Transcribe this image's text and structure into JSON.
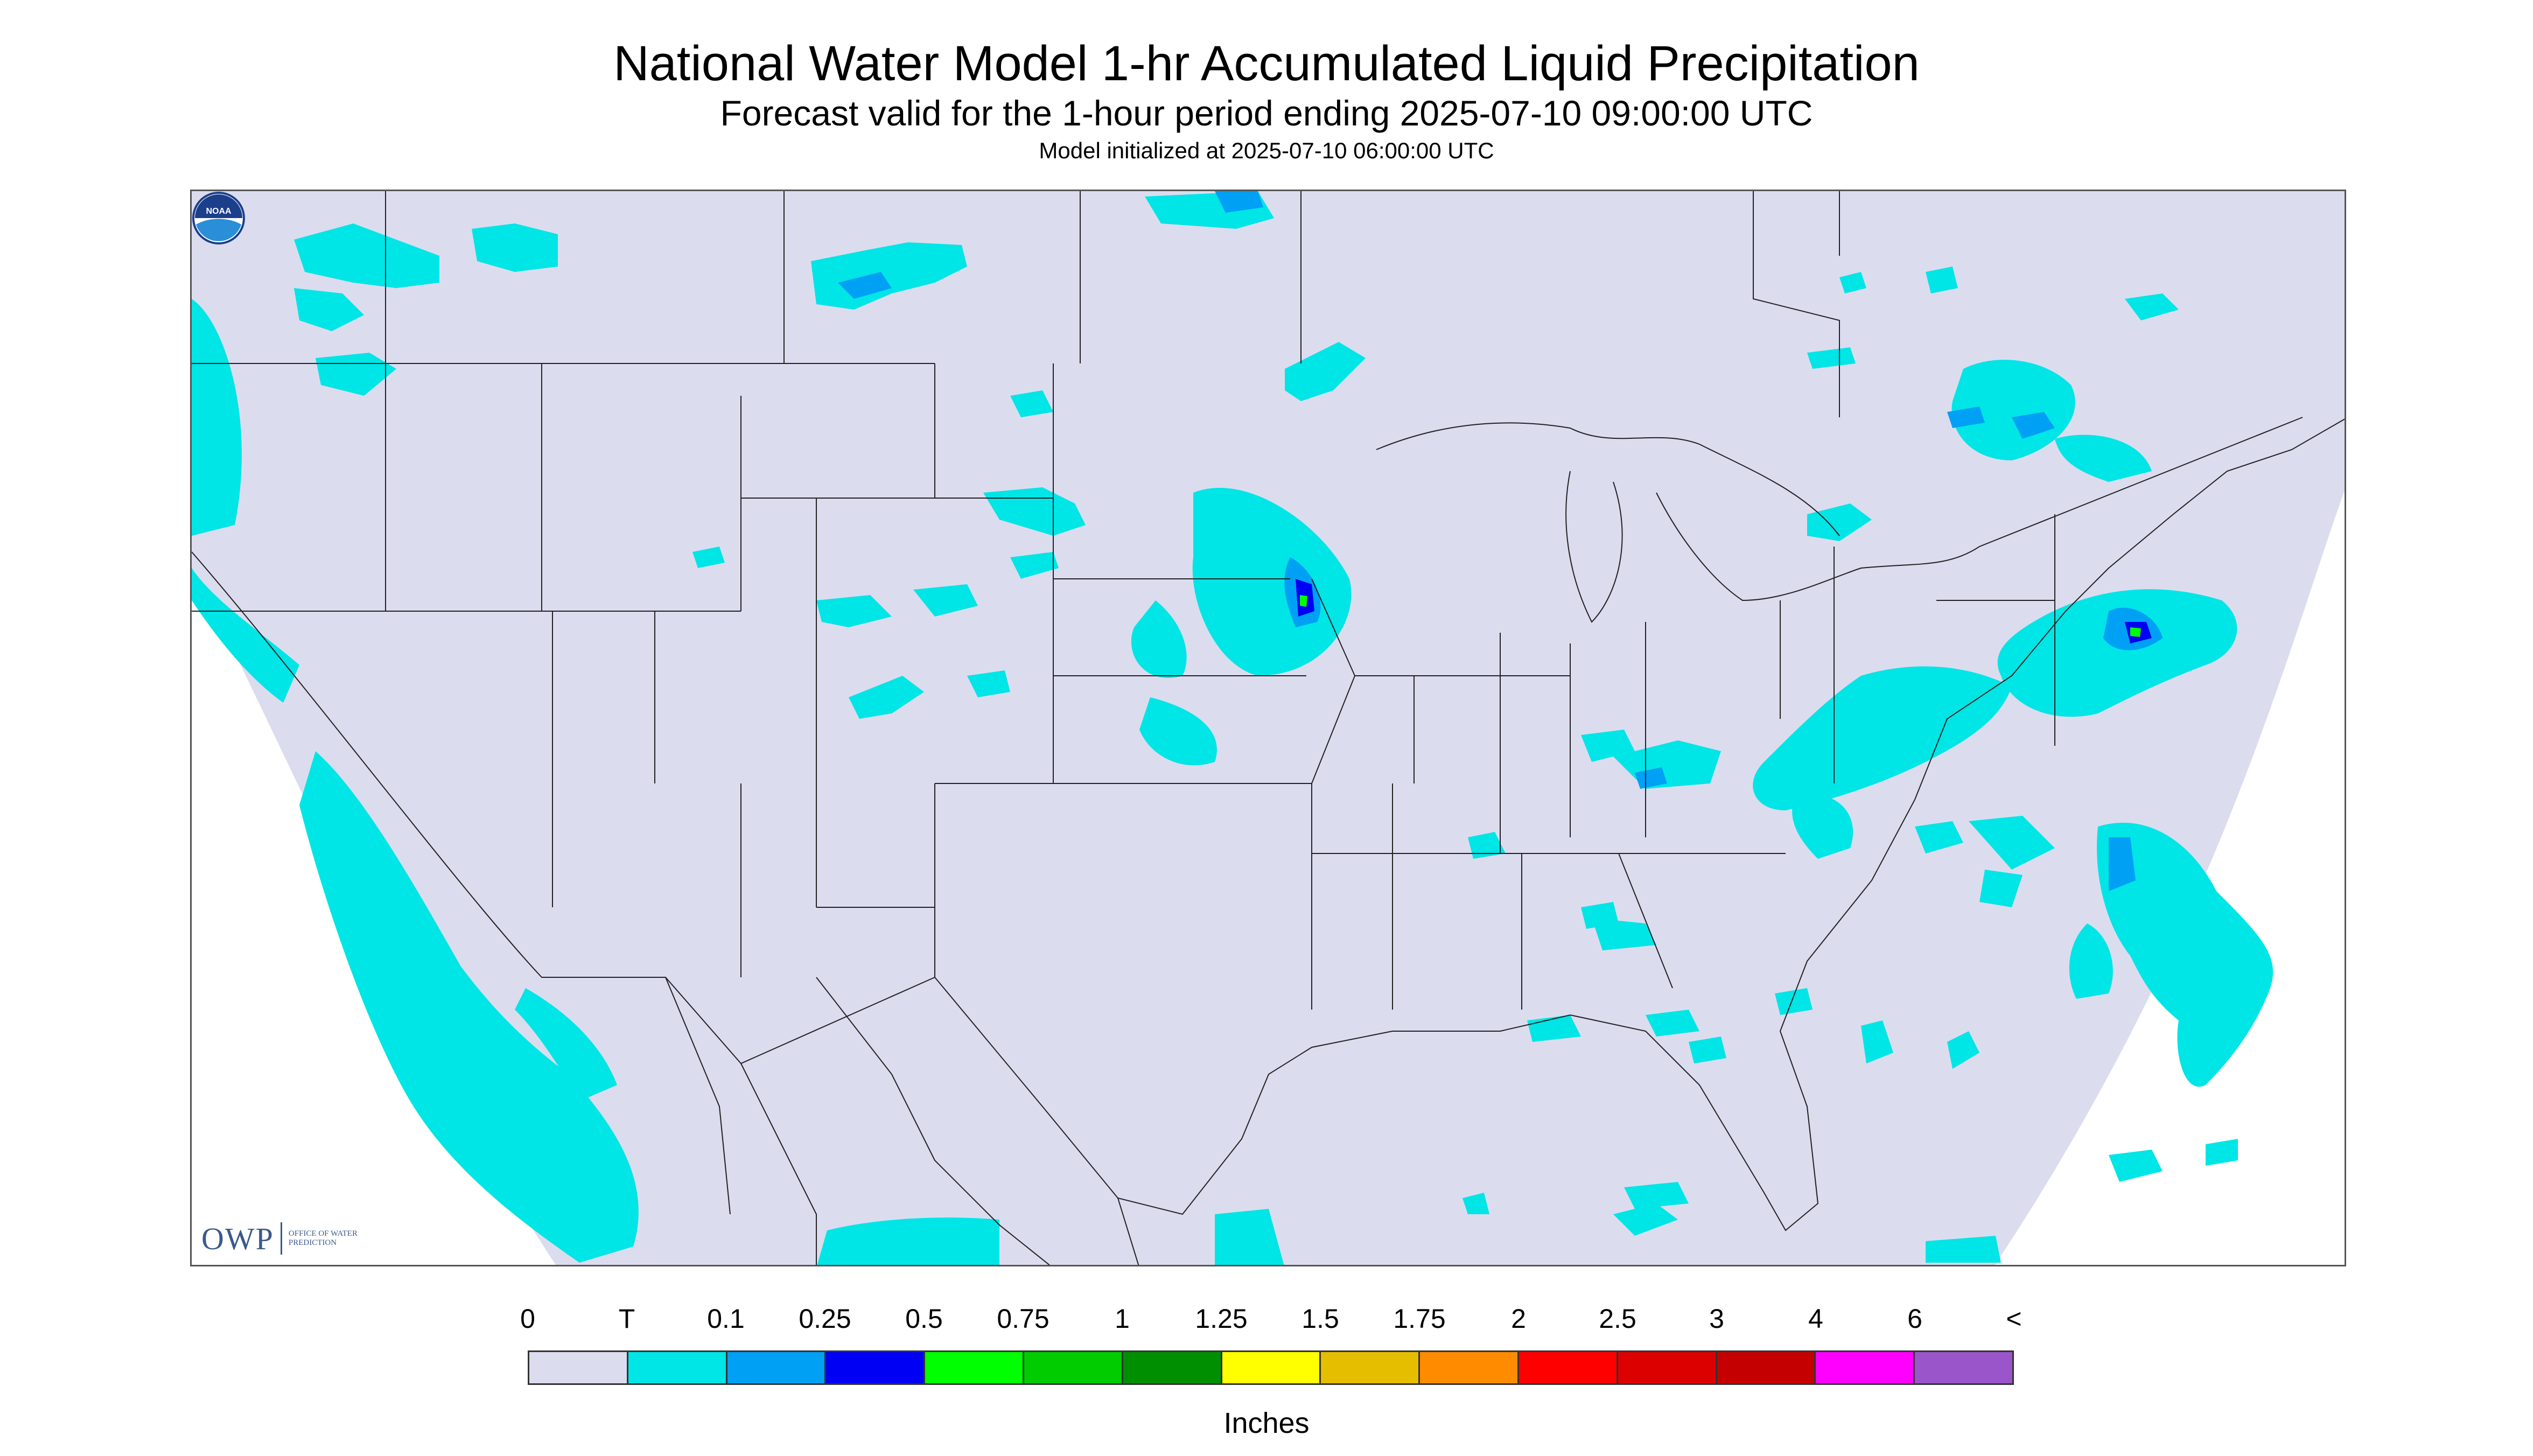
{
  "title": "National Water Model 1-hr Accumulated Liquid Precipitation",
  "subtitle": "Forecast valid for the 1-hour period ending 2025-07-10 09:00:00 UTC",
  "init_line": "Model initialized at 2025-07-10 06:00:00 UTC",
  "logos": {
    "owp_letters": "OWP",
    "owp_text": "OFFICE OF WATER PREDICTION",
    "noaa_text": "NOAA"
  },
  "legend": {
    "units": "Inches",
    "labels": [
      "0",
      "T",
      "0.1",
      "0.25",
      "0.5",
      "0.75",
      "1",
      "1.25",
      "1.5",
      "1.75",
      "2",
      "2.5",
      "3",
      "4",
      "6",
      "<"
    ],
    "colors": [
      "#dcdcef",
      "#00e5e5",
      "#00a0f5",
      "#0000f5",
      "#00ff00",
      "#00cc00",
      "#008f00",
      "#ffff00",
      "#e6be00",
      "#ff8c00",
      "#ff0000",
      "#dc0000",
      "#c40000",
      "#ff00ff",
      "#9955c9"
    ]
  },
  "colors": {
    "background_domain": "#dcdcef",
    "trace": "#00e5e5",
    "light_blue": "#00a0f5",
    "blue": "#0000f5",
    "green": "#00ff00",
    "boundary": "#222222"
  }
}
